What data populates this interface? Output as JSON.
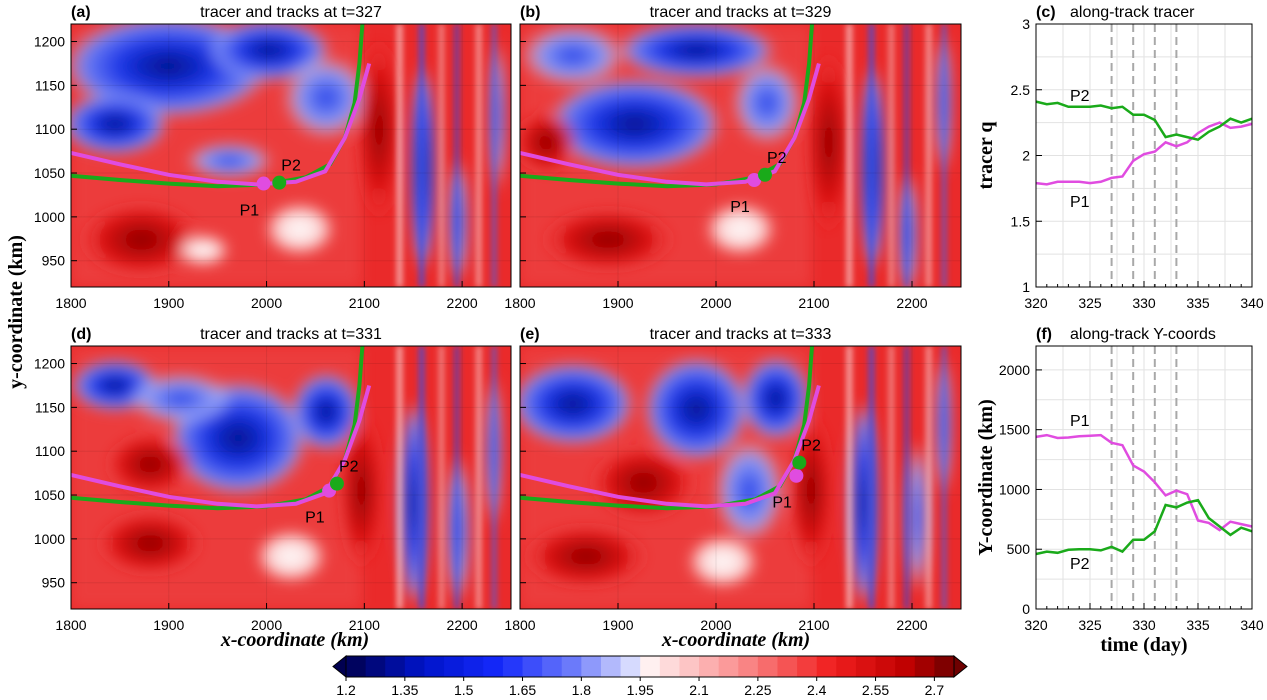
{
  "colors": {
    "p1": "#e04ce0",
    "p2": "#1aaa1a",
    "vline": "#a8a8a8",
    "grid": "#e2e2e2"
  },
  "colorbar": {
    "min": 1.2,
    "max": 2.75,
    "step": 0.05,
    "tick_labels": [
      "1.2",
      "1.35",
      "1.5",
      "1.65",
      "1.8",
      "1.95",
      "2.1",
      "2.25",
      "2.4",
      "2.55",
      "2.7"
    ],
    "tick_values": [
      1.2,
      1.35,
      1.5,
      1.65,
      1.8,
      1.95,
      2.1,
      2.25,
      2.4,
      2.55,
      2.7
    ],
    "extend": "both",
    "colormap": "blue-white-red"
  },
  "map_axes": {
    "xlabel": "x-coordinate (km)",
    "ylabel": "y-coordinate (km)",
    "xlim": [
      1800,
      2250
    ],
    "ylim": [
      920,
      1220
    ],
    "xticks": [
      1800,
      1900,
      2000,
      2100,
      2200
    ],
    "yticks": [
      950,
      1000,
      1050,
      1100,
      1150,
      1200
    ]
  },
  "chart_data": [
    {
      "type": "heatmap",
      "panel": "(a)",
      "title": "tracer and tracks at t=327",
      "time": 327,
      "track_p1": {
        "x": [
          1800,
          1850,
          1900,
          1950,
          1990,
          2030,
          2060,
          2080,
          2095,
          2105
        ],
        "y": [
          1073,
          1060,
          1048,
          1040,
          1037,
          1040,
          1052,
          1090,
          1135,
          1175
        ]
      },
      "track_p2": {
        "x": [
          1800,
          1850,
          1900,
          1950,
          2000,
          2040,
          2065,
          2080,
          2090,
          2095,
          2098
        ],
        "y": [
          1047,
          1042,
          1038,
          1035,
          1037,
          1045,
          1060,
          1090,
          1130,
          1175,
          1220
        ]
      },
      "points": [
        {
          "label": "P1",
          "x": 1997,
          "y": 1038
        },
        {
          "label": "P2",
          "x": 2013,
          "y": 1039
        }
      ]
    },
    {
      "type": "heatmap",
      "panel": "(b)",
      "title": "tracer and tracks at t=329",
      "time": 329,
      "track_p1": {
        "x": [
          1800,
          1850,
          1900,
          1950,
          1990,
          2030,
          2060,
          2080,
          2095,
          2105
        ],
        "y": [
          1073,
          1060,
          1048,
          1040,
          1037,
          1040,
          1052,
          1090,
          1135,
          1175
        ]
      },
      "track_p2": {
        "x": [
          1800,
          1850,
          1900,
          1950,
          2000,
          2040,
          2065,
          2080,
          2090,
          2095,
          2098
        ],
        "y": [
          1047,
          1042,
          1038,
          1035,
          1037,
          1045,
          1060,
          1090,
          1130,
          1175,
          1220
        ]
      },
      "points": [
        {
          "label": "P1",
          "x": 2039,
          "y": 1042
        },
        {
          "label": "P2",
          "x": 2050,
          "y": 1048
        }
      ]
    },
    {
      "type": "heatmap",
      "panel": "(d)",
      "title": "tracer and tracks at t=331",
      "time": 331,
      "track_p1": {
        "x": [
          1800,
          1850,
          1900,
          1950,
          1990,
          2030,
          2060,
          2080,
          2095,
          2105
        ],
        "y": [
          1073,
          1060,
          1048,
          1040,
          1037,
          1040,
          1052,
          1090,
          1135,
          1175
        ]
      },
      "track_p2": {
        "x": [
          1800,
          1850,
          1900,
          1950,
          2000,
          2040,
          2065,
          2080,
          2090,
          2095,
          2098
        ],
        "y": [
          1047,
          1042,
          1038,
          1035,
          1037,
          1045,
          1060,
          1090,
          1130,
          1175,
          1220
        ]
      },
      "points": [
        {
          "label": "P1",
          "x": 2064,
          "y": 1055
        },
        {
          "label": "P2",
          "x": 2072,
          "y": 1063
        }
      ]
    },
    {
      "type": "heatmap",
      "panel": "(e)",
      "title": "tracer and tracks at t=333",
      "time": 333,
      "track_p1": {
        "x": [
          1800,
          1850,
          1900,
          1950,
          1990,
          2030,
          2060,
          2080,
          2095,
          2105
        ],
        "y": [
          1073,
          1060,
          1048,
          1040,
          1037,
          1040,
          1052,
          1090,
          1135,
          1175
        ]
      },
      "track_p2": {
        "x": [
          1800,
          1850,
          1900,
          1950,
          2000,
          2040,
          2065,
          2080,
          2090,
          2095,
          2098
        ],
        "y": [
          1047,
          1042,
          1038,
          1035,
          1037,
          1045,
          1060,
          1090,
          1130,
          1175,
          1220
        ]
      },
      "points": [
        {
          "label": "P1",
          "x": 2082,
          "y": 1072
        },
        {
          "label": "P2",
          "x": 2085,
          "y": 1087
        }
      ]
    },
    {
      "type": "line",
      "panel": "(c)",
      "title": "along-track tracer",
      "xlabel": "",
      "ylabel": "tracer q",
      "xlim": [
        320,
        340
      ],
      "ylim": [
        1,
        3
      ],
      "xticks": [
        320,
        325,
        330,
        335,
        340
      ],
      "yticks": [
        1,
        1.5,
        2,
        2.5,
        3
      ],
      "vlines": [
        327,
        329,
        331,
        333
      ],
      "grid": true,
      "series": [
        {
          "name": "P1",
          "x": [
            320,
            321,
            322,
            323,
            324,
            325,
            326,
            327,
            328,
            329,
            330,
            331,
            332,
            333,
            334,
            335,
            336,
            337,
            338,
            339,
            340
          ],
          "y": [
            1.79,
            1.78,
            1.8,
            1.8,
            1.8,
            1.79,
            1.8,
            1.83,
            1.84,
            1.96,
            2.01,
            2.03,
            2.1,
            2.07,
            2.1,
            2.17,
            2.22,
            2.25,
            2.21,
            2.22,
            2.24
          ]
        },
        {
          "name": "P2",
          "x": [
            320,
            321,
            322,
            323,
            324,
            325,
            326,
            327,
            328,
            329,
            330,
            331,
            332,
            333,
            334,
            335,
            336,
            337,
            338,
            339,
            340
          ],
          "y": [
            2.41,
            2.39,
            2.4,
            2.37,
            2.37,
            2.37,
            2.38,
            2.36,
            2.37,
            2.31,
            2.31,
            2.27,
            2.14,
            2.16,
            2.14,
            2.12,
            2.18,
            2.22,
            2.28,
            2.25,
            2.28
          ]
        }
      ]
    },
    {
      "type": "line",
      "panel": "(f)",
      "title": "along-track Y-coords",
      "xlabel": "time (day)",
      "ylabel": "Y-coordinate (km)",
      "xlim": [
        320,
        340
      ],
      "ylim": [
        0,
        2200
      ],
      "xticks": [
        320,
        325,
        330,
        335,
        340
      ],
      "yticks": [
        0,
        500,
        1000,
        1500,
        2000
      ],
      "vlines": [
        327,
        329,
        331,
        333
      ],
      "grid": true,
      "series": [
        {
          "name": "P1",
          "x": [
            320,
            321,
            322,
            323,
            324,
            325,
            326,
            327,
            328,
            329,
            330,
            331,
            332,
            333,
            334,
            335,
            336,
            337,
            338,
            339,
            340
          ],
          "y": [
            1440,
            1455,
            1430,
            1435,
            1445,
            1450,
            1455,
            1390,
            1370,
            1200,
            1150,
            1060,
            950,
            990,
            960,
            740,
            720,
            660,
            730,
            710,
            690
          ]
        },
        {
          "name": "P2",
          "x": [
            320,
            321,
            322,
            323,
            324,
            325,
            326,
            327,
            328,
            329,
            330,
            331,
            332,
            333,
            334,
            335,
            336,
            337,
            338,
            339,
            340
          ],
          "y": [
            460,
            480,
            470,
            495,
            500,
            500,
            490,
            520,
            480,
            580,
            580,
            650,
            870,
            850,
            890,
            910,
            760,
            690,
            620,
            680,
            650
          ]
        }
      ]
    }
  ]
}
